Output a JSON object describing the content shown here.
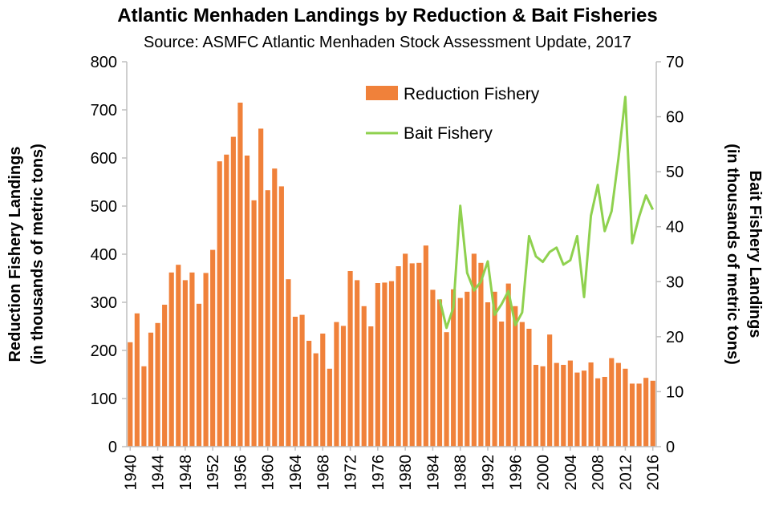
{
  "chart_data": {
    "type": "bar+line",
    "title": "Atlantic Menhaden Landings by Reduction & Bait Fisheries",
    "subtitle": "Source: ASMFC Atlantic Menhaden Stock Assessment Update, 2017",
    "ylabel_left_line1": "Reduction Fishery Landings",
    "ylabel_left_line2": "(in thousands of metric tons)",
    "ylabel_right_line1": "Bait Fishery Landings",
    "ylabel_right_line2": "(in thousands of metric tons)",
    "ylim_left": [
      0,
      800
    ],
    "yticks_left": [
      0,
      100,
      200,
      300,
      400,
      500,
      600,
      700,
      800
    ],
    "ylim_right": [
      0,
      70
    ],
    "yticks_right": [
      0,
      10,
      20,
      30,
      40,
      50,
      60,
      70
    ],
    "xtick_labels": [
      "1940",
      "1944",
      "1948",
      "1952",
      "1956",
      "1960",
      "1964",
      "1968",
      "1972",
      "1976",
      "1980",
      "1984",
      "1988",
      "1992",
      "1996",
      "2000",
      "2004",
      "2008",
      "2012",
      "2016"
    ],
    "legend_placement": "top-center",
    "grid": false,
    "colors": {
      "reduction": "#f0813a",
      "bait": "#8fd14f"
    },
    "series": [
      {
        "name": "Reduction Fishery",
        "kind": "bar",
        "axis": "left",
        "start_year": 1940,
        "values": [
          217,
          277,
          167,
          237,
          257,
          295,
          362,
          378,
          346,
          362,
          297,
          361,
          409,
          593,
          607,
          644,
          715,
          605,
          512,
          661,
          533,
          578,
          541,
          348,
          270,
          274,
          220,
          194,
          235,
          162,
          259,
          251,
          365,
          346,
          292,
          250,
          340,
          341,
          344,
          375,
          401,
          381,
          382,
          418,
          326,
          306,
          238,
          327,
          309,
          322,
          401,
          382,
          300,
          322,
          260,
          339,
          292,
          259,
          245,
          170,
          167,
          233,
          174,
          170,
          179,
          154,
          158,
          175,
          142,
          145,
          184,
          174,
          162,
          131,
          131,
          143,
          137
        ]
      },
      {
        "name": "Bait Fishery",
        "kind": "line",
        "axis": "right",
        "start_year": 1985,
        "values": [
          26.8,
          21.6,
          25.3,
          43.8,
          31.6,
          28.4,
          30.0,
          33.7,
          24.0,
          25.9,
          28.3,
          22.1,
          24.4,
          38.3,
          34.6,
          33.6,
          35.4,
          36.2,
          33.1,
          33.9,
          38.3,
          27.2,
          42.0,
          47.6,
          39.2,
          42.8,
          52.4,
          63.6,
          37.0,
          41.8,
          45.7,
          43.1
        ]
      }
    ]
  }
}
